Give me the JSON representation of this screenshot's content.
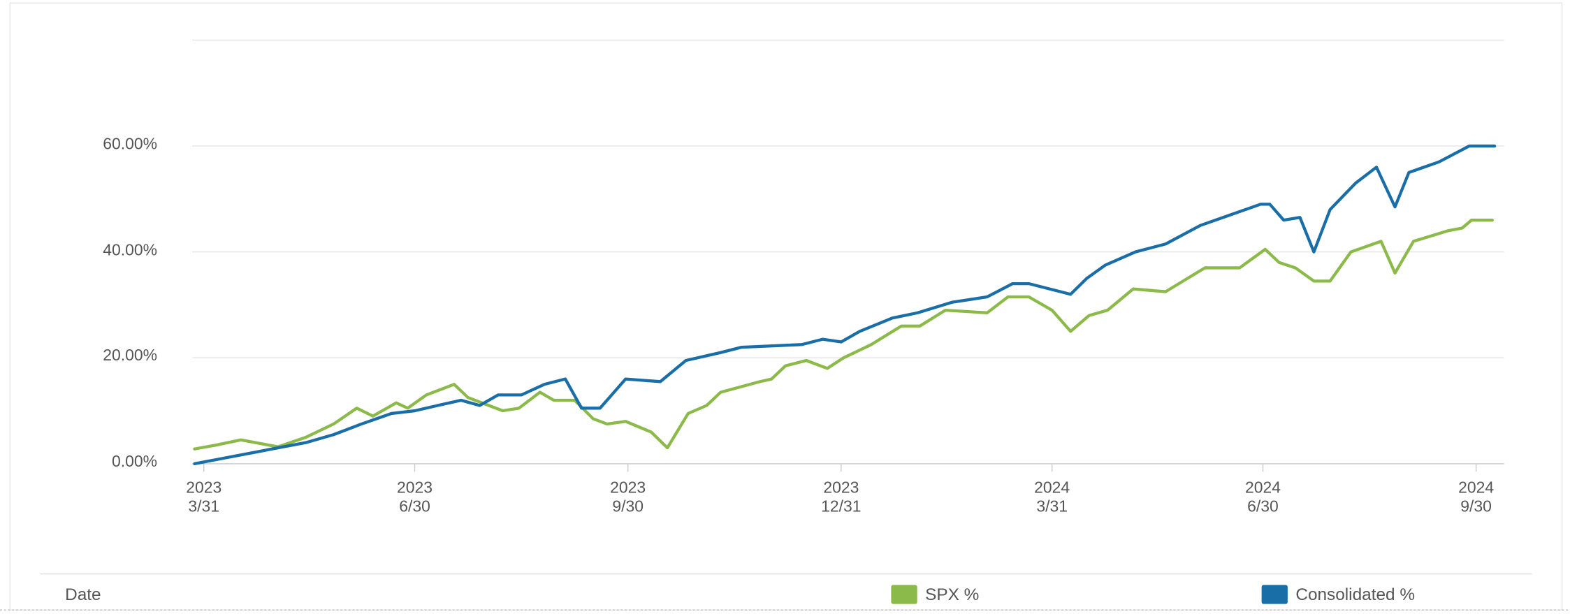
{
  "chart_data": {
    "type": "line",
    "x_label": "Date",
    "xlim": [
      "2023-03-26",
      "2024-10-12"
    ],
    "xticks": [
      {
        "value": "2023-03-31",
        "label": "2023\n3/31"
      },
      {
        "value": "2023-06-30",
        "label": "2023\n6/30"
      },
      {
        "value": "2023-09-30",
        "label": "2023\n9/30"
      },
      {
        "value": "2023-12-31",
        "label": "2023\n12/31"
      },
      {
        "value": "2024-03-31",
        "label": "2024\n3/31"
      },
      {
        "value": "2024-06-30",
        "label": "2024\n6/30"
      },
      {
        "value": "2024-09-30",
        "label": "2024\n9/30"
      }
    ],
    "ylim": [
      0,
      80
    ],
    "yticks": [
      {
        "value": 0,
        "label": "0.00%"
      },
      {
        "value": 20,
        "label": "20.00%"
      },
      {
        "value": 40,
        "label": "40.00%"
      },
      {
        "value": 60,
        "label": "60.00%"
      }
    ],
    "grid": true,
    "legend": "bottom",
    "series": [
      {
        "name": "SPX %",
        "color": "#8cba4a",
        "x": [
          "2023-03-27",
          "2023-04-05",
          "2023-04-16",
          "2023-05-02",
          "2023-05-14",
          "2023-05-26",
          "2023-06-05",
          "2023-06-12",
          "2023-06-22",
          "2023-06-27",
          "2023-07-05",
          "2023-07-17",
          "2023-07-23",
          "2023-08-07",
          "2023-08-14",
          "2023-08-23",
          "2023-08-29",
          "2023-09-07",
          "2023-09-15",
          "2023-09-21",
          "2023-09-29",
          "2023-10-10",
          "2023-10-17",
          "2023-10-26",
          "2023-11-03",
          "2023-11-09",
          "2023-11-26",
          "2023-12-01",
          "2023-12-07",
          "2023-12-16",
          "2023-12-25",
          "2024-01-01",
          "2024-01-13",
          "2024-01-26",
          "2024-02-03",
          "2024-02-14",
          "2024-03-03",
          "2024-03-12",
          "2024-03-21",
          "2024-03-31",
          "2024-04-08",
          "2024-04-16",
          "2024-04-24",
          "2024-05-05",
          "2024-05-19",
          "2024-06-05",
          "2024-06-20",
          "2024-07-01",
          "2024-07-07",
          "2024-07-14",
          "2024-07-22",
          "2024-07-29",
          "2024-08-07",
          "2024-08-20",
          "2024-08-26",
          "2024-09-03",
          "2024-09-18",
          "2024-09-24",
          "2024-09-28",
          "2024-10-07"
        ],
        "values": [
          2.8,
          3.5,
          4.5,
          3.2,
          5,
          7.5,
          10.5,
          9,
          11.5,
          10.5,
          13,
          15,
          12.5,
          10,
          10.5,
          13.5,
          12,
          12,
          8.5,
          7.5,
          8,
          6,
          3,
          9.5,
          11,
          13.5,
          15.5,
          16,
          18.5,
          19.5,
          18,
          20,
          22.5,
          26,
          26,
          29,
          28.5,
          31.5,
          31.5,
          29,
          25,
          28,
          29,
          33,
          32.5,
          37,
          37,
          40.5,
          38,
          37,
          34.5,
          34.5,
          40,
          42,
          36,
          42,
          44,
          44.5,
          46,
          46
        ]
      },
      {
        "name": "Consolidated %",
        "color": "#1a6ea8",
        "x": [
          "2023-03-27",
          "2023-04-08",
          "2023-04-20",
          "2023-05-02",
          "2023-05-14",
          "2023-05-26",
          "2023-06-07",
          "2023-06-20",
          "2023-06-30",
          "2023-07-10",
          "2023-07-20",
          "2023-07-28",
          "2023-08-05",
          "2023-08-15",
          "2023-08-25",
          "2023-09-03",
          "2023-09-10",
          "2023-09-18",
          "2023-09-29",
          "2023-10-14",
          "2023-10-25",
          "2023-11-09",
          "2023-11-18",
          "2023-12-14",
          "2023-12-23",
          "2023-12-31",
          "2024-01-08",
          "2024-01-22",
          "2024-02-02",
          "2024-02-17",
          "2024-03-03",
          "2024-03-14",
          "2024-03-21",
          "2024-04-08",
          "2024-04-15",
          "2024-04-23",
          "2024-05-06",
          "2024-05-19",
          "2024-06-03",
          "2024-06-16",
          "2024-06-29",
          "2024-07-03",
          "2024-07-09",
          "2024-07-16",
          "2024-07-22",
          "2024-07-29",
          "2024-08-09",
          "2024-08-18",
          "2024-08-26",
          "2024-09-01",
          "2024-09-14",
          "2024-09-27",
          "2024-10-08"
        ],
        "values": [
          0,
          1,
          2,
          3,
          4,
          5.5,
          7.5,
          9.5,
          10,
          11,
          12,
          11,
          13,
          13,
          15,
          16,
          10.5,
          10.5,
          16,
          15.5,
          19.5,
          21,
          22,
          22.5,
          23.5,
          23,
          25,
          27.5,
          28.5,
          30.5,
          31.5,
          34,
          34,
          32,
          35,
          37.5,
          40,
          41.5,
          45,
          47,
          49,
          49,
          46,
          46.5,
          40,
          48,
          53,
          56,
          48.5,
          55,
          57,
          60,
          60
        ]
      }
    ]
  }
}
